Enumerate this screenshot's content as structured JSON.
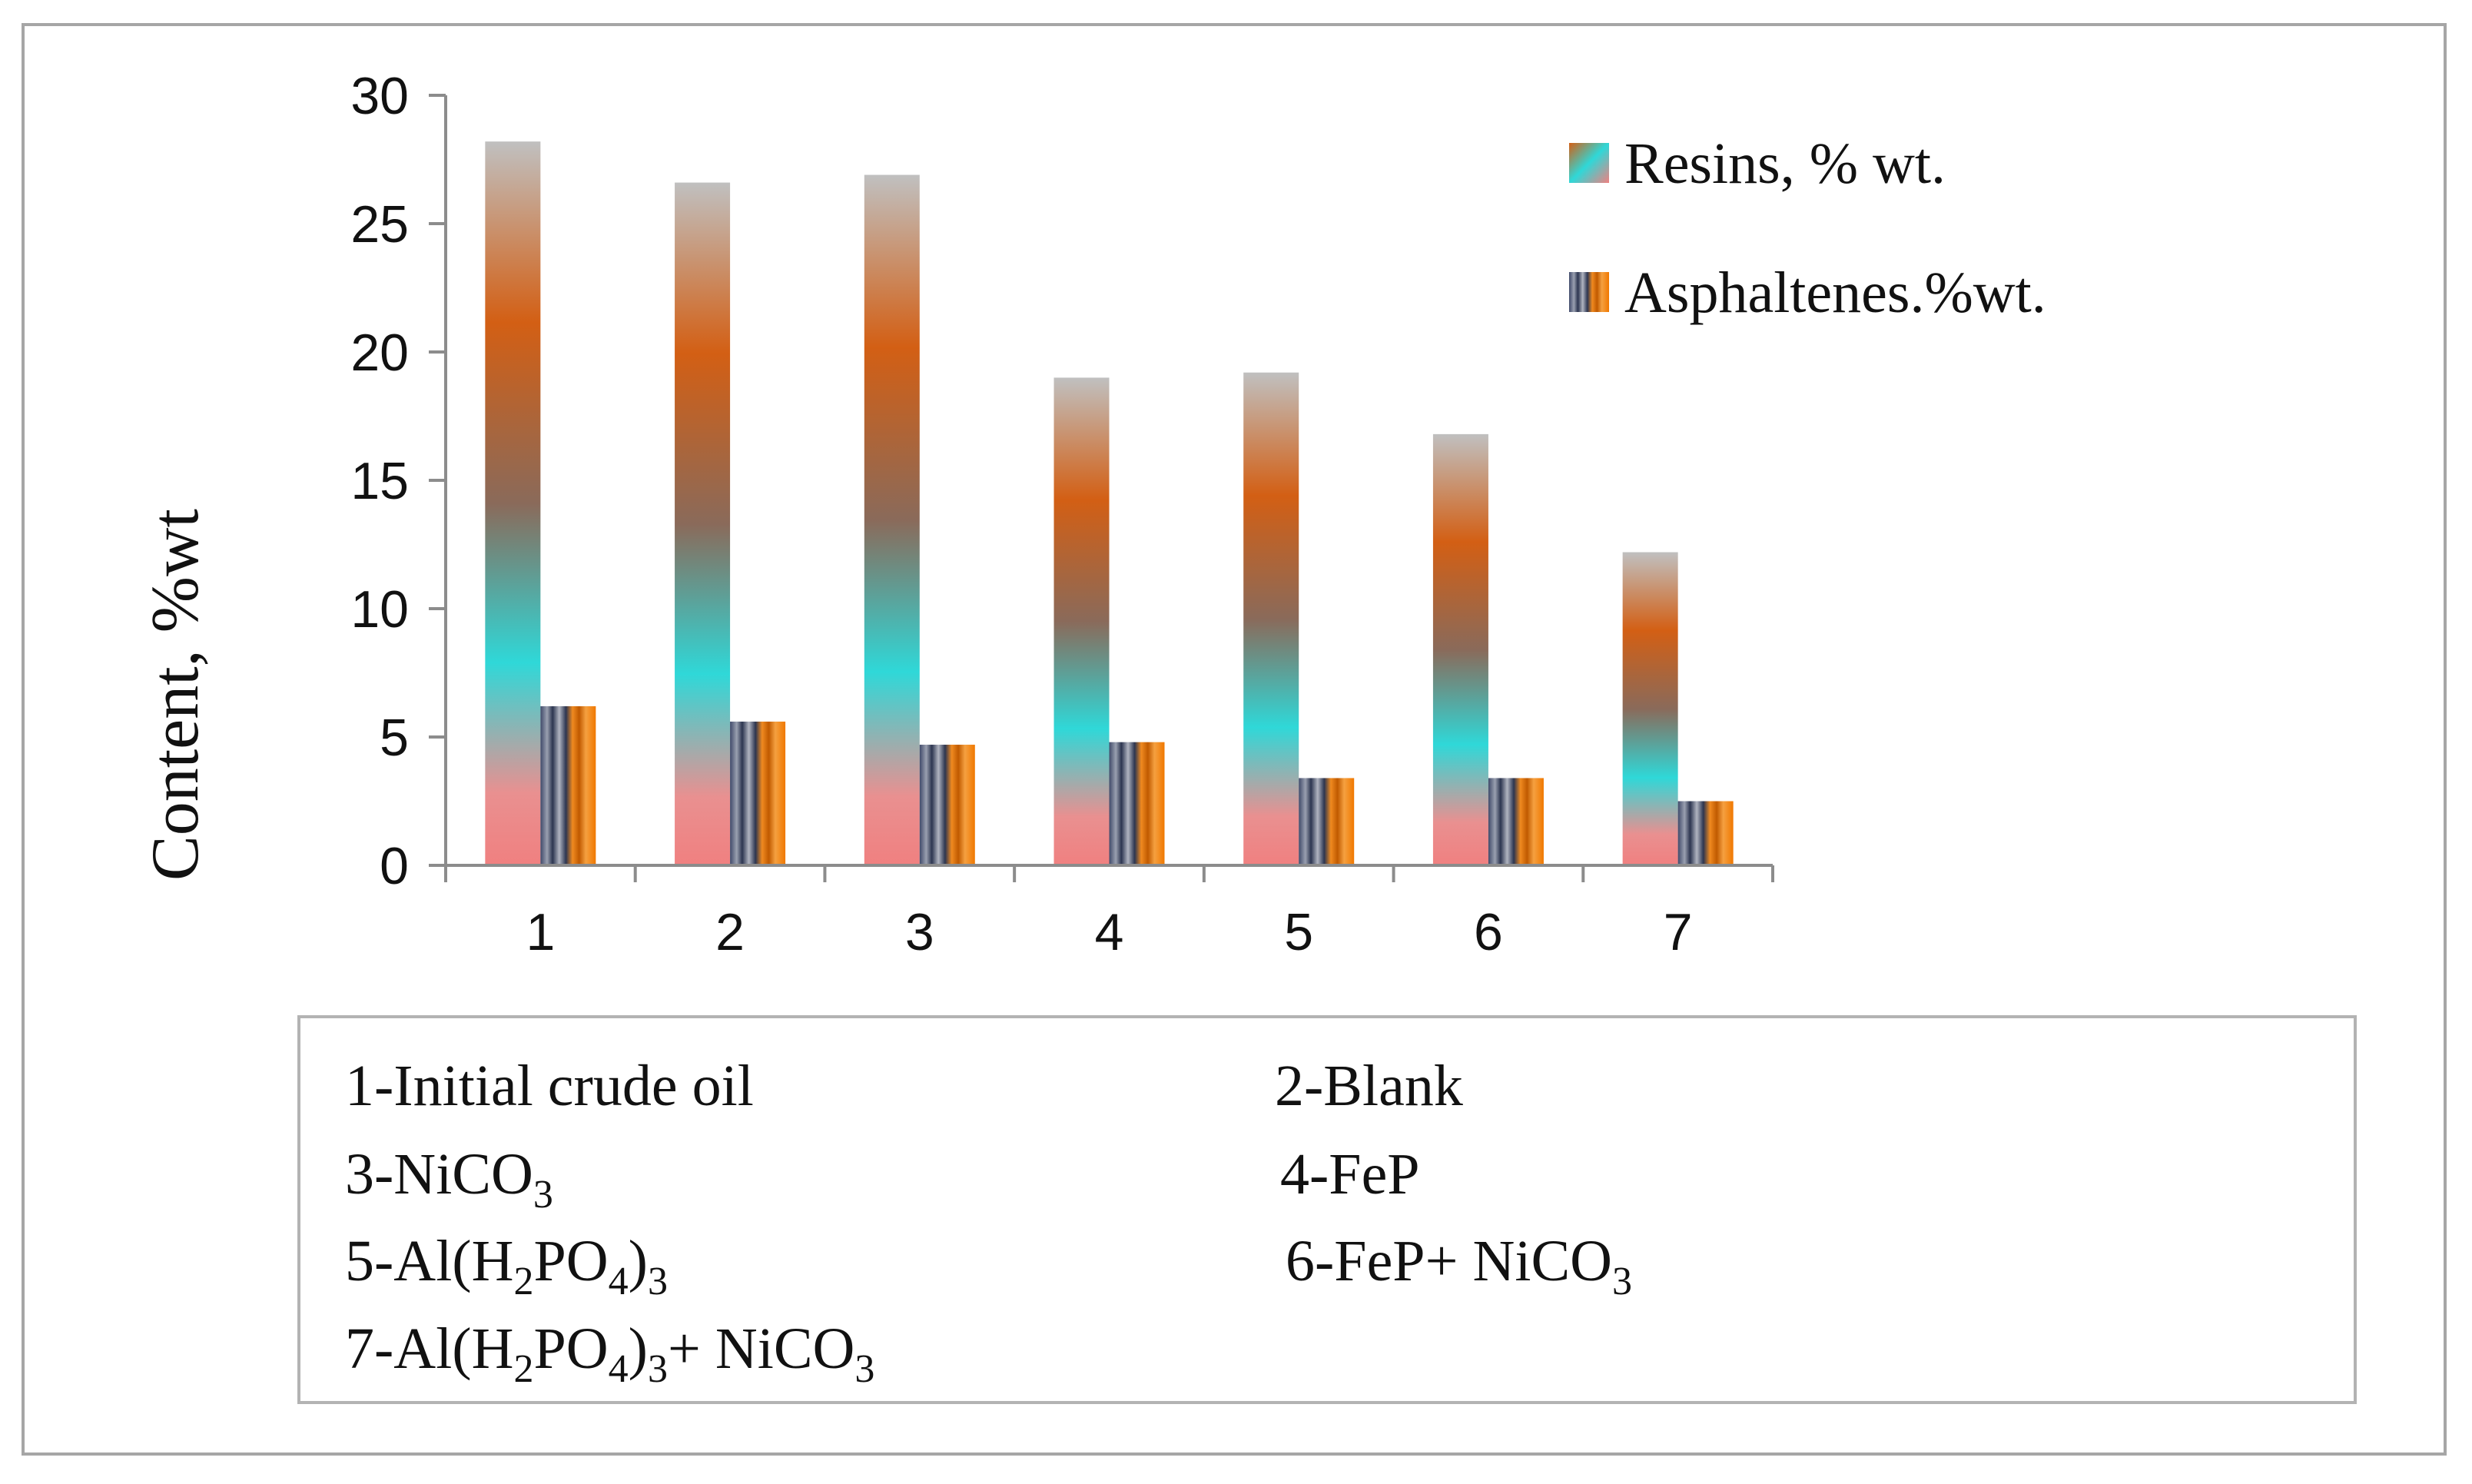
{
  "chart_data": {
    "type": "bar",
    "title": "",
    "xlabel": "",
    "ylabel": "Content, %wt",
    "ylim": [
      0,
      30
    ],
    "yticks": [
      "0",
      "5",
      "10",
      "15",
      "20",
      "25",
      "30"
    ],
    "categories": [
      "1",
      "2",
      "3",
      "4",
      "5",
      "6",
      "7"
    ],
    "series": [
      {
        "name": "Resins, % wt.",
        "values": [
          28.2,
          26.6,
          26.9,
          19.0,
          19.2,
          16.8,
          12.2
        ]
      },
      {
        "name": "Asphaltenes.%wt.",
        "values": [
          6.2,
          5.6,
          4.7,
          4.8,
          3.4,
          3.4,
          2.5
        ]
      }
    ],
    "legend_position": "top-right",
    "colors": {
      "resins_top": "#c0c0c0",
      "resins_upper": "#d35f14",
      "resins_mid": "#2fd8d8",
      "resins_bottom": "#f08080",
      "asph_stripe_dark": "#3a4a6a",
      "asph_stripe_orange": "#f0820a",
      "axis": "#8c8c8c"
    }
  },
  "key": {
    "item1": "1-Initial crude oil",
    "item2": "2-Blank",
    "item3": {
      "a": "3-NiCO",
      "s1": "3"
    },
    "item4": "4-FeP",
    "item5": {
      "a": "5-Al(H",
      "s1": "2",
      "b": "PO",
      "s2": "4",
      "c": ")",
      "s3": "3"
    },
    "item6": {
      "a": "6-FeP+ NiCO",
      "s1": "3"
    },
    "item7": {
      "a": "7-Al(H",
      "s1": "2",
      "b": "PO",
      "s2": "4",
      "c": ")",
      "s3": "3",
      "d": "+ NiCO",
      "s4": "3"
    }
  }
}
